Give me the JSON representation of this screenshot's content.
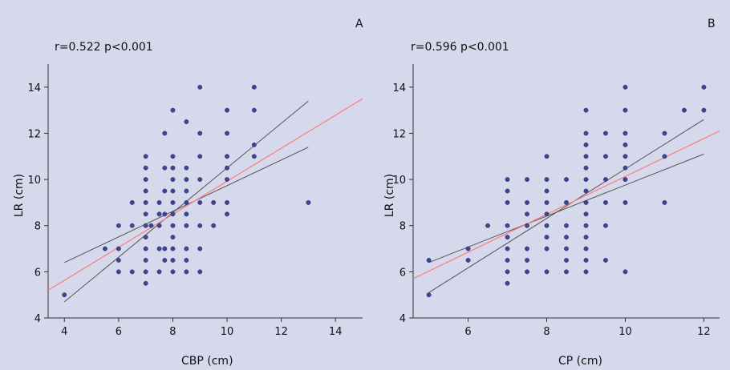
{
  "chart_data": [
    {
      "type": "scatter",
      "panel_label": "A",
      "annotation": "r=0.522 p<0.001",
      "xlabel": "CBP (cm)",
      "ylabel": "LR (cm)",
      "xlim": [
        3.4,
        15
      ],
      "ylim": [
        4,
        15
      ],
      "xticks": [
        4,
        6,
        8,
        10,
        12,
        14
      ],
      "yticks": [
        4,
        6,
        8,
        10,
        12,
        14
      ],
      "points": [
        [
          4,
          5
        ],
        [
          5.5,
          7
        ],
        [
          6,
          6
        ],
        [
          6,
          6.5
        ],
        [
          6,
          7
        ],
        [
          6,
          8
        ],
        [
          6.5,
          6
        ],
        [
          6.5,
          8
        ],
        [
          6.5,
          9
        ],
        [
          7,
          5.5
        ],
        [
          7,
          6
        ],
        [
          7,
          6.5
        ],
        [
          7,
          7
        ],
        [
          7,
          7.5
        ],
        [
          7,
          8
        ],
        [
          7,
          8.5
        ],
        [
          7,
          9
        ],
        [
          7,
          9.5
        ],
        [
          7,
          10
        ],
        [
          7,
          10.5
        ],
        [
          7,
          11
        ],
        [
          7.2,
          8
        ],
        [
          7.5,
          6
        ],
        [
          7.5,
          7
        ],
        [
          7.5,
          8
        ],
        [
          7.5,
          8.5
        ],
        [
          7.5,
          9
        ],
        [
          7.7,
          6.5
        ],
        [
          7.7,
          7
        ],
        [
          7.7,
          8.5
        ],
        [
          7.7,
          9.5
        ],
        [
          7.7,
          10.5
        ],
        [
          7.7,
          12
        ],
        [
          8,
          6
        ],
        [
          8,
          6.5
        ],
        [
          8,
          7
        ],
        [
          8,
          7.5
        ],
        [
          8,
          8
        ],
        [
          8,
          8.5
        ],
        [
          8,
          9
        ],
        [
          8,
          9.5
        ],
        [
          8,
          10
        ],
        [
          8,
          10.5
        ],
        [
          8,
          11
        ],
        [
          8,
          13
        ],
        [
          8.5,
          6
        ],
        [
          8.5,
          6.5
        ],
        [
          8.5,
          7
        ],
        [
          8.5,
          8
        ],
        [
          8.5,
          8.5
        ],
        [
          8.5,
          9
        ],
        [
          8.5,
          9.5
        ],
        [
          8.5,
          10
        ],
        [
          8.5,
          10.5
        ],
        [
          8.5,
          12.5
        ],
        [
          9,
          6
        ],
        [
          9,
          7
        ],
        [
          9,
          8
        ],
        [
          9,
          9
        ],
        [
          9,
          10
        ],
        [
          9,
          11
        ],
        [
          9,
          12
        ],
        [
          9,
          14
        ],
        [
          9.5,
          8
        ],
        [
          9.5,
          9
        ],
        [
          10,
          8.5
        ],
        [
          10,
          9
        ],
        [
          10,
          10
        ],
        [
          10,
          10.5
        ],
        [
          10,
          11
        ],
        [
          10,
          12
        ],
        [
          10,
          13
        ],
        [
          11,
          11
        ],
        [
          11,
          11.5
        ],
        [
          11,
          13
        ],
        [
          11,
          14
        ],
        [
          13,
          9
        ]
      ],
      "fit_line": [
        [
          3.4,
          5.2
        ],
        [
          15,
          13.5
        ]
      ],
      "ci_lower": [
        [
          4,
          4.7
        ],
        [
          13,
          13.4
        ]
      ],
      "ci_upper": [
        [
          4,
          6.4
        ],
        [
          13,
          11.4
        ]
      ]
    },
    {
      "type": "scatter",
      "panel_label": "B",
      "annotation": "r=0.596 p<0.001",
      "xlabel": "CP (cm)",
      "ylabel": "LR (cm)",
      "xlim": [
        4.6,
        12.4
      ],
      "ylim": [
        4,
        15
      ],
      "xticks": [
        6,
        8,
        10,
        12
      ],
      "yticks": [
        4,
        6,
        8,
        10,
        12,
        14
      ],
      "points": [
        [
          5,
          5
        ],
        [
          5,
          6.5
        ],
        [
          6,
          6.5
        ],
        [
          6,
          7
        ],
        [
          6.5,
          8
        ],
        [
          7,
          5.5
        ],
        [
          7,
          6
        ],
        [
          7,
          6.5
        ],
        [
          7,
          7
        ],
        [
          7,
          7.5
        ],
        [
          7,
          8
        ],
        [
          7,
          9
        ],
        [
          7,
          9.5
        ],
        [
          7,
          10
        ],
        [
          7.5,
          6
        ],
        [
          7.5,
          6.5
        ],
        [
          7.5,
          7
        ],
        [
          7.5,
          8
        ],
        [
          7.5,
          8.5
        ],
        [
          7.5,
          9
        ],
        [
          7.5,
          10
        ],
        [
          8,
          6
        ],
        [
          8,
          7
        ],
        [
          8,
          7.5
        ],
        [
          8,
          8
        ],
        [
          8,
          8.5
        ],
        [
          8,
          9
        ],
        [
          8,
          9.5
        ],
        [
          8,
          10
        ],
        [
          8,
          11
        ],
        [
          8.5,
          6
        ],
        [
          8.5,
          6.5
        ],
        [
          8.5,
          7
        ],
        [
          8.5,
          7.5
        ],
        [
          8.5,
          8
        ],
        [
          8.5,
          9
        ],
        [
          8.5,
          10
        ],
        [
          9,
          6
        ],
        [
          9,
          6.5
        ],
        [
          9,
          7
        ],
        [
          9,
          7.5
        ],
        [
          9,
          8
        ],
        [
          9,
          8.5
        ],
        [
          9,
          9
        ],
        [
          9,
          9.5
        ],
        [
          9,
          10
        ],
        [
          9,
          10.5
        ],
        [
          9,
          11
        ],
        [
          9,
          11.5
        ],
        [
          9,
          12
        ],
        [
          9,
          13
        ],
        [
          9.5,
          6.5
        ],
        [
          9.5,
          8
        ],
        [
          9.5,
          9
        ],
        [
          9.5,
          10
        ],
        [
          9.5,
          11
        ],
        [
          9.5,
          12
        ],
        [
          10,
          6
        ],
        [
          10,
          9
        ],
        [
          10,
          10
        ],
        [
          10,
          10.5
        ],
        [
          10,
          11
        ],
        [
          10,
          11.5
        ],
        [
          10,
          12
        ],
        [
          10,
          13
        ],
        [
          10,
          14
        ],
        [
          11,
          9
        ],
        [
          11,
          11
        ],
        [
          11,
          12
        ],
        [
          11.5,
          13
        ],
        [
          12,
          13
        ],
        [
          12,
          14
        ]
      ],
      "fit_line": [
        [
          4.6,
          5.7
        ],
        [
          12.4,
          12.1
        ]
      ],
      "ci_lower": [
        [
          5,
          5.1
        ],
        [
          12,
          12.6
        ]
      ],
      "ci_upper": [
        [
          5,
          6.4
        ],
        [
          12,
          11.1
        ]
      ]
    }
  ]
}
